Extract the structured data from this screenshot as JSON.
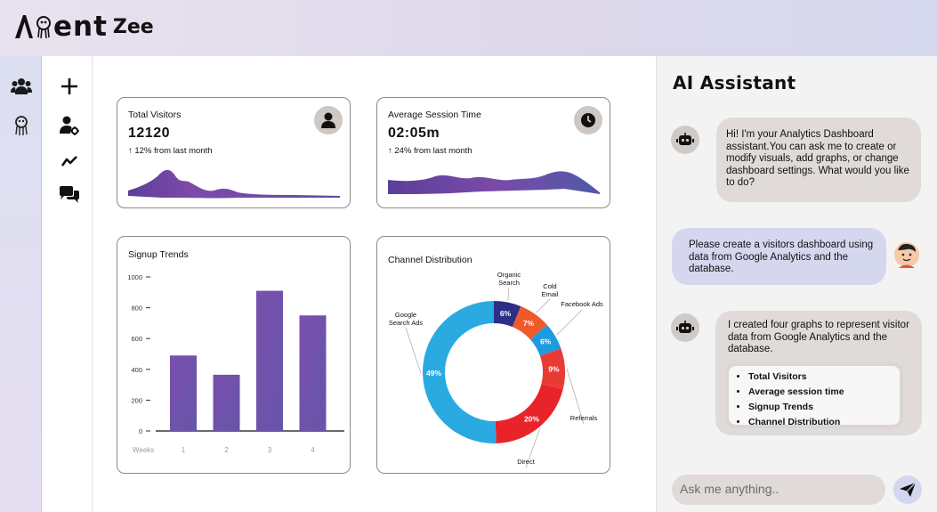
{
  "brand": {
    "name_main": "ent",
    "name_sub": "Zee"
  },
  "rail": {
    "items": [
      {
        "icon": "users-icon"
      },
      {
        "icon": "agent-icon"
      }
    ]
  },
  "tools": {
    "items": [
      {
        "icon": "plus-icon"
      },
      {
        "icon": "user-settings-icon"
      },
      {
        "icon": "trend-icon"
      },
      {
        "icon": "chat-icon"
      }
    ]
  },
  "cards": {
    "total_visitors": {
      "title": "Total Visitors",
      "value": "12120",
      "delta": "↑ 12% from last month",
      "icon": "user-icon"
    },
    "session_time": {
      "title": "Average Session Time",
      "value": "02:05m",
      "delta": "↑ 24%  from last month",
      "icon": "clock-icon"
    },
    "signup": {
      "title": "Signup Trends"
    },
    "channel": {
      "title": "Channel Distribution"
    }
  },
  "chart_data": [
    {
      "type": "bar",
      "title": "Signup Trends",
      "xlabel": "Weeks",
      "categories": [
        "1",
        "2",
        "3",
        "4"
      ],
      "values": [
        490,
        365,
        910,
        750
      ],
      "ylim": [
        0,
        1000
      ],
      "yticks": [
        "1000",
        "800",
        "600",
        "400",
        "200",
        "0"
      ],
      "color": "#7a52ab"
    },
    {
      "type": "pie",
      "title": "Channel Distribution",
      "donut": true,
      "slices": [
        {
          "label": "Organic Search",
          "value": 6,
          "text": "6%",
          "color": "#2d2e86"
        },
        {
          "label": "Cold Email",
          "value": 7,
          "text": "7%",
          "color": "#ef5a2b"
        },
        {
          "label": "Facebook Ads",
          "value": 6,
          "text": "6%",
          "color": "#1d9be0"
        },
        {
          "label": "Referrals",
          "value": 9,
          "text": "9%",
          "color": "#ea3a35"
        },
        {
          "label": "Direct",
          "value": 20,
          "text": "20%",
          "color": "#e8232a"
        },
        {
          "label": "Google Search Ads",
          "value": 49,
          "text": "49%",
          "color": "#2baae2"
        }
      ]
    }
  ],
  "assistant": {
    "title": "AI Assistant",
    "messages": [
      {
        "role": "ai",
        "text": "Hi! I'm your Analytics Dashboard assistant.You can ask me to create or modify visuals, add graphs, or change dashboard settings. What would you like to do?"
      },
      {
        "role": "user",
        "text": "Please create a visitors dashboard using data from Google Analytics and the database."
      },
      {
        "role": "ai",
        "text": "I created four graphs to represent visitor data from Google Analytics and the database.",
        "list": [
          "Total Visitors",
          "Average session time",
          "Signup Trends",
          "Channel Distribution"
        ]
      }
    ],
    "input_placeholder": "Ask me anything..",
    "send_icon": "send-icon"
  },
  "colors": {
    "accent": "#7a52ab",
    "sparkline": "#6e4fa6"
  }
}
